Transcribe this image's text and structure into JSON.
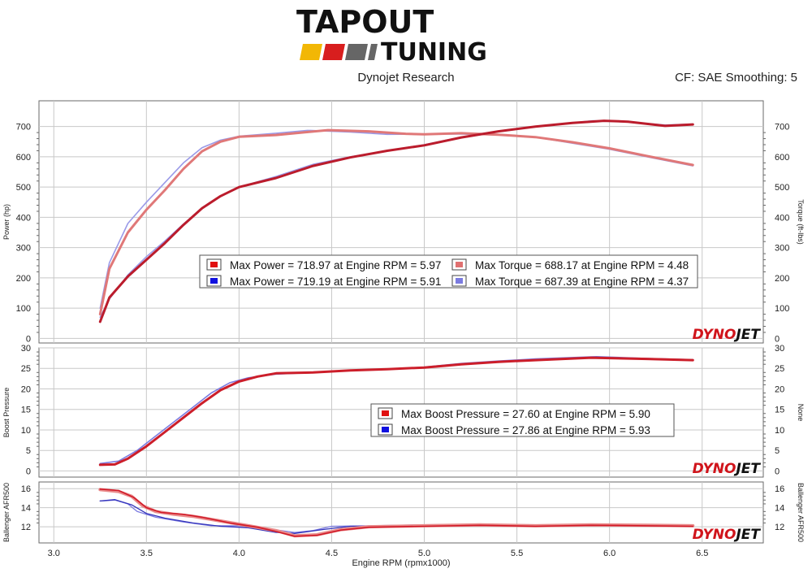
{
  "brand": {
    "logo_line1": "TAPOUT",
    "logo_line2": "TUNING",
    "stripe_colors": [
      "#f2b705",
      "#d81e1e",
      "#666666",
      "#666666"
    ]
  },
  "header": {
    "left": "Dynojet Research",
    "right": "CF: SAE Smoothing: 5"
  },
  "watermark": {
    "part1": "DYNO",
    "part2": "JET",
    "color1": "#d0141b",
    "color2": "#111111"
  },
  "chart_data": [
    {
      "type": "line",
      "name": "power-torque",
      "ylabel": "Power (hp)",
      "ylabel_right": "Torque (ft-lbs)",
      "ylim": [
        -15,
        785
      ],
      "yticks": [
        0,
        100,
        200,
        300,
        400,
        500,
        600,
        700
      ],
      "xlim": [
        2.92,
        6.83
      ],
      "grid": true,
      "series": [
        {
          "color": "#9a9ae8",
          "width": 1.6,
          "values": [
            [
              3.25,
              70
            ],
            [
              3.3,
              130
            ],
            [
              3.4,
              210
            ],
            [
              3.5,
              270
            ],
            [
              3.6,
              322
            ],
            [
              3.7,
              378
            ],
            [
              3.8,
              430
            ],
            [
              3.9,
              470
            ],
            [
              4.0,
              500
            ],
            [
              4.2,
              535
            ],
            [
              4.4,
              575
            ],
            [
              4.6,
              600
            ],
            [
              4.8,
              620
            ],
            [
              5.0,
              640
            ],
            [
              5.2,
              665
            ],
            [
              5.4,
              685
            ],
            [
              5.6,
              700
            ],
            [
              5.8,
              712
            ],
            [
              5.91,
              719.19
            ],
            [
              6.1,
              715
            ],
            [
              6.3,
              705
            ],
            [
              6.45,
              708
            ]
          ]
        },
        {
          "color": "#9a9ae8",
          "width": 1.6,
          "values": [
            [
              3.25,
              100
            ],
            [
              3.3,
              250
            ],
            [
              3.4,
              380
            ],
            [
              3.5,
              450
            ],
            [
              3.6,
              515
            ],
            [
              3.7,
              580
            ],
            [
              3.8,
              630
            ],
            [
              3.9,
              655
            ],
            [
              4.0,
              668
            ],
            [
              4.2,
              678
            ],
            [
              4.37,
              687.39
            ],
            [
              4.6,
              682
            ],
            [
              4.8,
              674
            ],
            [
              5.0,
              675
            ],
            [
              5.2,
              675
            ],
            [
              5.4,
              672
            ],
            [
              5.6,
              665
            ],
            [
              5.8,
              645
            ],
            [
              6.0,
              625
            ],
            [
              6.2,
              600
            ],
            [
              6.45,
              570
            ]
          ]
        },
        {
          "color": "#e07878",
          "width": 3,
          "values": [
            [
              3.25,
              80
            ],
            [
              3.3,
              230
            ],
            [
              3.4,
              350
            ],
            [
              3.5,
              425
            ],
            [
              3.6,
              490
            ],
            [
              3.7,
              560
            ],
            [
              3.8,
              618
            ],
            [
              3.9,
              650
            ],
            [
              4.0,
              666
            ],
            [
              4.2,
              672
            ],
            [
              4.48,
              688.17
            ],
            [
              4.7,
              684
            ],
            [
              4.9,
              676
            ],
            [
              5.0,
              674
            ],
            [
              5.2,
              678
            ],
            [
              5.4,
              673
            ],
            [
              5.6,
              665
            ],
            [
              5.8,
              648
            ],
            [
              6.0,
              628
            ],
            [
              6.2,
              603
            ],
            [
              6.45,
              573
            ]
          ]
        },
        {
          "color": "#bb1c2c",
          "width": 3,
          "values": [
            [
              3.25,
              55
            ],
            [
              3.3,
              135
            ],
            [
              3.4,
              205
            ],
            [
              3.5,
              260
            ],
            [
              3.6,
              315
            ],
            [
              3.7,
              375
            ],
            [
              3.8,
              430
            ],
            [
              3.9,
              470
            ],
            [
              4.0,
              500
            ],
            [
              4.2,
              530
            ],
            [
              4.4,
              570
            ],
            [
              4.6,
              598
            ],
            [
              4.8,
              620
            ],
            [
              5.0,
              638
            ],
            [
              5.2,
              664
            ],
            [
              5.4,
              684
            ],
            [
              5.6,
              700
            ],
            [
              5.8,
              712
            ],
            [
              5.97,
              718.97
            ],
            [
              6.1,
              716
            ],
            [
              6.3,
              702
            ],
            [
              6.45,
              707
            ]
          ]
        }
      ],
      "legend": [
        {
          "color": "#e01010",
          "text": "Max Power = 718.97 at Engine RPM = 5.97"
        },
        {
          "color": "#1010e0",
          "text": "Max Power = 719.19 at Engine RPM = 5.91"
        },
        {
          "color": "#e07070",
          "text": "Max Torque = 688.17 at Engine RPM = 4.48"
        },
        {
          "color": "#7b7be0",
          "text": "Max Torque = 687.39 at Engine RPM = 4.37"
        }
      ]
    },
    {
      "type": "line",
      "name": "boost",
      "ylabel": "Boost Pressure",
      "ylabel_right": "None",
      "ylim": [
        -1.5,
        30
      ],
      "yticks": [
        0,
        5,
        10,
        15,
        20,
        25,
        30
      ],
      "grid": true,
      "series": [
        {
          "color": "#7b7be0",
          "width": 1.6,
          "values": [
            [
              3.25,
              1.8
            ],
            [
              3.35,
              2.4
            ],
            [
              3.45,
              5
            ],
            [
              3.55,
              8.5
            ],
            [
              3.65,
              12
            ],
            [
              3.75,
              15.5
            ],
            [
              3.85,
              19
            ],
            [
              3.95,
              21.5
            ],
            [
              4.05,
              22.7
            ],
            [
              4.2,
              23.6
            ],
            [
              4.4,
              24
            ],
            [
              4.6,
              24.5
            ],
            [
              4.8,
              24.8
            ],
            [
              5.0,
              25.3
            ],
            [
              5.2,
              26.2
            ],
            [
              5.4,
              26.8
            ],
            [
              5.6,
              27.3
            ],
            [
              5.93,
              27.86
            ],
            [
              6.2,
              27.4
            ],
            [
              6.45,
              27.1
            ]
          ]
        },
        {
          "color": "#cc1e2a",
          "width": 3,
          "values": [
            [
              3.25,
              1.5
            ],
            [
              3.33,
              1.6
            ],
            [
              3.4,
              3
            ],
            [
              3.5,
              6
            ],
            [
              3.6,
              9.5
            ],
            [
              3.7,
              13
            ],
            [
              3.8,
              16.5
            ],
            [
              3.9,
              19.7
            ],
            [
              4.0,
              21.8
            ],
            [
              4.1,
              23
            ],
            [
              4.2,
              23.8
            ],
            [
              4.4,
              24
            ],
            [
              4.6,
              24.5
            ],
            [
              4.8,
              24.8
            ],
            [
              5.0,
              25.2
            ],
            [
              5.2,
              26
            ],
            [
              5.4,
              26.6
            ],
            [
              5.6,
              27
            ],
            [
              5.9,
              27.6
            ],
            [
              6.2,
              27.3
            ],
            [
              6.45,
              27
            ]
          ]
        }
      ],
      "legend": [
        {
          "color": "#e01010",
          "text": "Max Boost Pressure = 27.60 at Engine RPM = 5.90"
        },
        {
          "color": "#1010e0",
          "text": "Max Boost Pressure = 27.86 at Engine RPM = 5.93"
        }
      ]
    },
    {
      "type": "line",
      "name": "afr",
      "ylabel": "Ballenger AFR500",
      "ylabel_right": "Ballenger AFR500",
      "ylim": [
        10.3,
        16.7
      ],
      "yticks": [
        12,
        14,
        16
      ],
      "xlabel": "Engine RPM (rpmx1000)",
      "xticks": [
        "3.0",
        "3.5",
        "4.0",
        "4.5",
        "5.0",
        "5.5",
        "6.0",
        "6.5"
      ],
      "grid": true,
      "series": [
        {
          "color": "#7b7be0",
          "width": 1.3,
          "values": [
            [
              3.25,
              14.7
            ],
            [
              3.33,
              14.8
            ],
            [
              3.4,
              14.4
            ],
            [
              3.45,
              13.6
            ],
            [
              3.55,
              13
            ],
            [
              3.7,
              12.5
            ],
            [
              3.85,
              12.1
            ],
            [
              4.0,
              12.1
            ],
            [
              4.15,
              11.8
            ],
            [
              4.3,
              11.4
            ],
            [
              4.4,
              11.6
            ],
            [
              4.5,
              12.05
            ],
            [
              4.7,
              12.1
            ],
            [
              5.0,
              12.2
            ],
            [
              5.3,
              12.25
            ],
            [
              5.6,
              12.2
            ],
            [
              6.0,
              12.2
            ],
            [
              6.3,
              12.15
            ],
            [
              6.45,
              12.1
            ]
          ]
        },
        {
          "color": "#3333bb",
          "width": 1.3,
          "values": [
            [
              3.25,
              14.7
            ],
            [
              3.33,
              14.85
            ],
            [
              3.42,
              14.3
            ],
            [
              3.5,
              13.4
            ],
            [
              3.6,
              12.9
            ],
            [
              3.75,
              12.4
            ],
            [
              3.9,
              12.05
            ],
            [
              4.05,
              11.9
            ],
            [
              4.2,
              11.4
            ],
            [
              4.3,
              11.3
            ],
            [
              4.45,
              11.7
            ],
            [
              4.6,
              12.05
            ],
            [
              4.9,
              12.1
            ],
            [
              5.2,
              12.2
            ],
            [
              5.5,
              12.2
            ],
            [
              5.9,
              12.2
            ],
            [
              6.2,
              12.2
            ],
            [
              6.45,
              12.1
            ]
          ]
        },
        {
          "color": "#e98a8a",
          "width": 4,
          "values": [
            [
              3.25,
              15.9
            ],
            [
              3.35,
              15.7
            ],
            [
              3.42,
              15.2
            ],
            [
              3.48,
              14.2
            ],
            [
              3.55,
              13.6
            ],
            [
              3.65,
              13.3
            ],
            [
              3.75,
              13.1
            ],
            [
              3.9,
              12.6
            ],
            [
              4.05,
              12.1
            ],
            [
              4.2,
              11.6
            ],
            [
              4.3,
              11.05
            ],
            [
              4.42,
              11.15
            ],
            [
              4.55,
              11.7
            ],
            [
              4.7,
              12.0
            ],
            [
              5.0,
              12.1
            ],
            [
              5.3,
              12.2
            ],
            [
              5.6,
              12.1
            ],
            [
              5.9,
              12.2
            ],
            [
              6.2,
              12.15
            ],
            [
              6.45,
              12.1
            ]
          ]
        },
        {
          "color": "#d11a28",
          "width": 1.6,
          "values": [
            [
              3.25,
              15.95
            ],
            [
              3.35,
              15.8
            ],
            [
              3.43,
              15.1
            ],
            [
              3.5,
              14.0
            ],
            [
              3.58,
              13.5
            ],
            [
              3.7,
              13.3
            ],
            [
              3.8,
              13.0
            ],
            [
              3.95,
              12.4
            ],
            [
              4.1,
              11.95
            ],
            [
              4.2,
              11.5
            ],
            [
              4.3,
              11.0
            ],
            [
              4.42,
              11.1
            ],
            [
              4.55,
              11.65
            ],
            [
              4.7,
              11.95
            ],
            [
              5.0,
              12.05
            ],
            [
              5.3,
              12.15
            ],
            [
              5.6,
              12.05
            ],
            [
              5.9,
              12.15
            ],
            [
              6.2,
              12.1
            ],
            [
              6.45,
              12.05
            ]
          ]
        }
      ]
    }
  ]
}
